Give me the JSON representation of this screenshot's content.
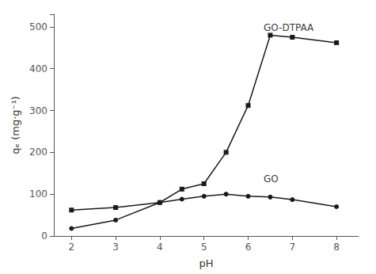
{
  "chart_data": {
    "type": "line",
    "xlabel": "pH",
    "ylabel": "qₑ (mg·g⁻¹)",
    "xlim": [
      1.6,
      8.5
    ],
    "ylim": [
      0,
      530
    ],
    "xticks": [
      2,
      3,
      4,
      5,
      6,
      7,
      8
    ],
    "yticks": [
      0,
      100,
      200,
      300,
      400,
      500
    ],
    "grid": false,
    "series": [
      {
        "name": "GO-DTPAA",
        "color": "#1a1a1a",
        "marker": "square",
        "x": [
          2,
          3,
          4,
          4.5,
          5,
          5.5,
          6,
          6.5,
          7,
          8
        ],
        "values": [
          62,
          68,
          80,
          112,
          125,
          200,
          312,
          480,
          475,
          462
        ]
      },
      {
        "name": "GO",
        "color": "#1a1a1a",
        "marker": "circle",
        "x": [
          2,
          3,
          4,
          4.5,
          5,
          5.5,
          6,
          6.5,
          7,
          8
        ],
        "values": [
          18,
          38,
          80,
          88,
          95,
          100,
          95,
          93,
          87,
          70
        ]
      }
    ],
    "annotations": [
      {
        "text": "GO-DTPAA",
        "x": 6.35,
        "y": 510
      },
      {
        "text": "GO",
        "x": 6.35,
        "y": 148
      }
    ]
  }
}
